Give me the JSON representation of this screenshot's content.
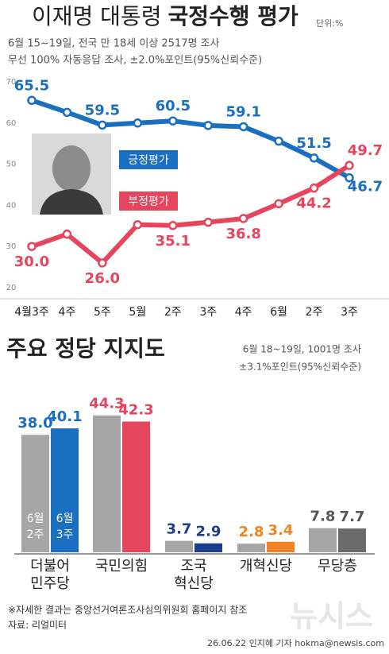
{
  "header": {
    "title": "이재명 대통령",
    "title_bold": "국정수행 평가",
    "unit": "단위:%",
    "subtitle": [
      "6월 15~19일, 전국 만 18세 이상 2517명 조사",
      "무선 100% 자동응답 조사, ±2.0%포인트(95%신뢰수준)"
    ]
  },
  "chart_data": [
    {
      "type": "line",
      "categories": [
        "4월3주",
        "4주",
        "5주",
        "5월",
        "2주",
        "3주",
        "4주",
        "6월",
        "2주",
        "3주"
      ],
      "ylim": [
        20,
        70
      ],
      "yticks": [
        20,
        30,
        40,
        50,
        60,
        70
      ],
      "series": [
        {
          "name": "긍정평가",
          "color": "#1a6fc0",
          "values": [
            65.5,
            62.6,
            59.5,
            60.0,
            60.5,
            59.4,
            59.1,
            55.6,
            51.5,
            46.7
          ],
          "value_labels": [
            "65.5",
            null,
            "59.5",
            null,
            "60.5",
            null,
            "59.1",
            null,
            "51.5",
            "46.7"
          ]
        },
        {
          "name": "부정평가",
          "color": "#e5465d",
          "values": [
            30.0,
            33.0,
            26.0,
            35.3,
            35.1,
            35.9,
            36.8,
            40.4,
            44.2,
            49.7
          ],
          "value_labels": [
            "30.0",
            null,
            "26.0",
            null,
            "35.1",
            null,
            "36.8",
            null,
            "44.2",
            "49.7"
          ]
        }
      ]
    },
    {
      "type": "bar",
      "title": "주요 정당 지지도",
      "subtitle": [
        "6월 18~19일, 1001명 조사",
        "±3.1%포인트(95%신뢰수준)"
      ],
      "categories": [
        "더불어\n민주당",
        "국민의힘",
        "조국\n혁신당",
        "개혁신당",
        "무당층"
      ],
      "ylim": [
        0,
        45
      ],
      "label_colors": [
        "#1a6fc0",
        "#e5465d",
        "#1d3d8f",
        "#f08324",
        "#555555"
      ],
      "series": [
        {
          "name": "6월\n2주",
          "color": "#a6a6a6",
          "values": [
            38.0,
            44.3,
            3.7,
            2.8,
            7.8
          ],
          "value_labels": [
            "38.0",
            "44.3",
            "3.7",
            "2.8",
            "7.8"
          ]
        },
        {
          "name": "6월\n3주",
          "colors": [
            "#1a6fc0",
            "#e5465d",
            "#1d3d8f",
            "#f08324",
            "#6b6b6b"
          ],
          "values": [
            40.1,
            42.3,
            2.9,
            3.4,
            7.7
          ],
          "value_labels": [
            "40.1",
            "42.3",
            "2.9",
            "3.4",
            "7.7"
          ]
        }
      ]
    }
  ],
  "footer": {
    "note": "※자세한 결과는 중앙선거여론조사심의위원회 홈페이지 참조",
    "source": "자료: 리얼미터",
    "credit": "26.06.22 인지혜 기자 hokma@newsis.com",
    "watermark": "뉴시스"
  }
}
